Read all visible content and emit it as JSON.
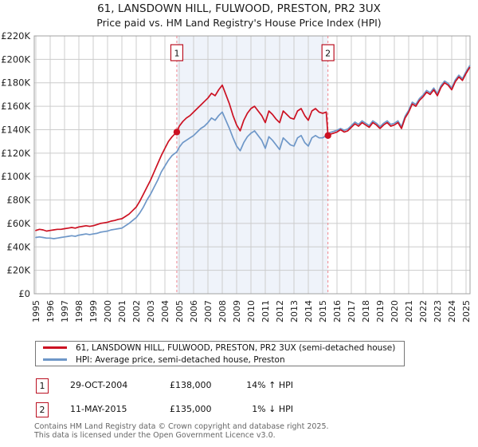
{
  "title": {
    "line1": "61, LANSDOWN HILL, FULWOOD, PRESTON, PR2 3UX",
    "line2": "Price paid vs. HM Land Registry's House Price Index (HPI)"
  },
  "colors": {
    "price_paid": "#cc1122",
    "hpi": "#6e97c8",
    "marker_dashed": "#f0858d",
    "marker_box_border": "#bb1122",
    "shaded_region": "#eff3fa",
    "grid": "#cccccc",
    "frame": "#a0a0a0",
    "axis_text": "#222222"
  },
  "legend": {
    "items": [
      {
        "id": "price_paid",
        "label": "61, LANSDOWN HILL, FULWOOD, PRESTON, PR2 3UX (semi-detached house)",
        "color": "#cc1122"
      },
      {
        "id": "hpi",
        "label": "HPI: Average price, semi-detached house, Preston",
        "color": "#6e97c8"
      }
    ]
  },
  "transactions": {
    "rows": [
      {
        "num": "1",
        "date": "29-OCT-2004",
        "price": "£138,000",
        "vs_hpi": "14% ↑ HPI"
      },
      {
        "num": "2",
        "date": "11-MAY-2015",
        "price": "£135,000",
        "vs_hpi": "1% ↓ HPI"
      }
    ]
  },
  "footer": {
    "line1": "Contains HM Land Registry data © Crown copyright and database right 2025.",
    "line2": "This data is licensed under the Open Government Licence v3.0."
  },
  "chart_data": {
    "type": "line",
    "title": "61, LANSDOWN HILL, FULWOOD, PRESTON, PR2 3UX — Price paid vs. HPI",
    "xlabel": "",
    "ylabel": "",
    "x_range": [
      1995,
      2025.4
    ],
    "y_range_thousands_gbp": [
      0,
      220
    ],
    "grid": true,
    "legend_position": "below",
    "y_ticks": [
      {
        "value": 0,
        "label": "£0"
      },
      {
        "value": 20,
        "label": "£20K"
      },
      {
        "value": 40,
        "label": "£40K"
      },
      {
        "value": 60,
        "label": "£60K"
      },
      {
        "value": 80,
        "label": "£80K"
      },
      {
        "value": 100,
        "label": "£100K"
      },
      {
        "value": 120,
        "label": "£120K"
      },
      {
        "value": 140,
        "label": "£140K"
      },
      {
        "value": 160,
        "label": "£160K"
      },
      {
        "value": 180,
        "label": "£180K"
      },
      {
        "value": 200,
        "label": "£200K"
      },
      {
        "value": 220,
        "label": "£220K"
      }
    ],
    "x_ticks": [
      1995,
      1996,
      1997,
      1998,
      1999,
      2000,
      2001,
      2002,
      2003,
      2004,
      2005,
      2006,
      2007,
      2008,
      2009,
      2010,
      2011,
      2012,
      2013,
      2014,
      2015,
      2016,
      2017,
      2018,
      2019,
      2020,
      2021,
      2022,
      2023,
      2024,
      2025
    ],
    "shaded_region": {
      "from": 2004.83,
      "to": 2015.37
    },
    "markers": [
      {
        "label": "1",
        "year": 2004.83,
        "value": 138
      },
      {
        "label": "2",
        "year": 2015.37,
        "value": 135
      }
    ],
    "series": [
      {
        "id": "price_paid",
        "name": "61, LANSDOWN HILL, FULWOOD, PRESTON, PR2 3UX (semi-detached house)",
        "color": "#cc1122",
        "points": [
          [
            1995.0,
            54
          ],
          [
            1995.25,
            55
          ],
          [
            1995.5,
            54.5
          ],
          [
            1995.75,
            53.5
          ],
          [
            1996.0,
            54
          ],
          [
            1996.25,
            54.5
          ],
          [
            1996.5,
            55
          ],
          [
            1996.75,
            55
          ],
          [
            1997.0,
            55.5
          ],
          [
            1997.25,
            56
          ],
          [
            1997.5,
            56.5
          ],
          [
            1997.75,
            56
          ],
          [
            1998.0,
            57
          ],
          [
            1998.25,
            57.5
          ],
          [
            1998.5,
            58
          ],
          [
            1998.75,
            57.5
          ],
          [
            1999.0,
            58
          ],
          [
            1999.25,
            59
          ],
          [
            1999.5,
            60
          ],
          [
            1999.75,
            60.5
          ],
          [
            2000.0,
            61
          ],
          [
            2000.25,
            62
          ],
          [
            2000.5,
            62.5
          ],
          [
            2000.75,
            63.5
          ],
          [
            2001.0,
            64
          ],
          [
            2001.25,
            66
          ],
          [
            2001.5,
            68
          ],
          [
            2001.75,
            71
          ],
          [
            2002.0,
            74
          ],
          [
            2002.25,
            79
          ],
          [
            2002.5,
            85
          ],
          [
            2002.75,
            91
          ],
          [
            2003.0,
            97
          ],
          [
            2003.25,
            104
          ],
          [
            2003.5,
            111
          ],
          [
            2003.75,
            118
          ],
          [
            2004.0,
            124
          ],
          [
            2004.25,
            130
          ],
          [
            2004.5,
            134
          ],
          [
            2004.83,
            138
          ],
          [
            2005.0,
            143
          ],
          [
            2005.25,
            147
          ],
          [
            2005.5,
            150
          ],
          [
            2005.75,
            152
          ],
          [
            2006.0,
            155
          ],
          [
            2006.25,
            158
          ],
          [
            2006.5,
            161
          ],
          [
            2006.75,
            164
          ],
          [
            2007.0,
            167
          ],
          [
            2007.25,
            171
          ],
          [
            2007.5,
            169
          ],
          [
            2007.75,
            174
          ],
          [
            2008.0,
            178
          ],
          [
            2008.25,
            170
          ],
          [
            2008.5,
            162
          ],
          [
            2008.75,
            152
          ],
          [
            2009.0,
            144
          ],
          [
            2009.25,
            139
          ],
          [
            2009.5,
            148
          ],
          [
            2009.75,
            154
          ],
          [
            2010.0,
            158
          ],
          [
            2010.25,
            160
          ],
          [
            2010.5,
            156
          ],
          [
            2010.75,
            152
          ],
          [
            2011.0,
            146
          ],
          [
            2011.25,
            156
          ],
          [
            2011.5,
            153
          ],
          [
            2011.75,
            149
          ],
          [
            2012.0,
            146
          ],
          [
            2012.25,
            156
          ],
          [
            2012.5,
            153
          ],
          [
            2012.75,
            150
          ],
          [
            2013.0,
            149
          ],
          [
            2013.25,
            156
          ],
          [
            2013.5,
            158
          ],
          [
            2013.75,
            152
          ],
          [
            2014.0,
            148
          ],
          [
            2014.25,
            156
          ],
          [
            2014.5,
            158
          ],
          [
            2014.75,
            155
          ],
          [
            2015.0,
            154
          ],
          [
            2015.25,
            155
          ],
          [
            2015.37,
            135
          ],
          [
            2015.5,
            136
          ],
          [
            2015.75,
            137
          ],
          [
            2016.0,
            138
          ],
          [
            2016.25,
            140
          ],
          [
            2016.5,
            138
          ],
          [
            2016.75,
            139
          ],
          [
            2017.0,
            142
          ],
          [
            2017.25,
            145
          ],
          [
            2017.5,
            143
          ],
          [
            2017.75,
            146
          ],
          [
            2018.0,
            144
          ],
          [
            2018.25,
            142
          ],
          [
            2018.5,
            146
          ],
          [
            2018.75,
            144
          ],
          [
            2019.0,
            141
          ],
          [
            2019.25,
            144
          ],
          [
            2019.5,
            146
          ],
          [
            2019.75,
            143
          ],
          [
            2020.0,
            144
          ],
          [
            2020.25,
            146
          ],
          [
            2020.5,
            141
          ],
          [
            2020.75,
            150
          ],
          [
            2021.0,
            155
          ],
          [
            2021.25,
            162
          ],
          [
            2021.5,
            160
          ],
          [
            2021.75,
            165
          ],
          [
            2022.0,
            168
          ],
          [
            2022.25,
            172
          ],
          [
            2022.5,
            170
          ],
          [
            2022.75,
            174
          ],
          [
            2023.0,
            169
          ],
          [
            2023.25,
            176
          ],
          [
            2023.5,
            180
          ],
          [
            2023.75,
            178
          ],
          [
            2024.0,
            174
          ],
          [
            2024.25,
            181
          ],
          [
            2024.5,
            185
          ],
          [
            2024.75,
            182
          ],
          [
            2025.0,
            188
          ],
          [
            2025.25,
            193
          ]
        ]
      },
      {
        "id": "hpi",
        "name": "HPI: Average price, semi-detached house, Preston",
        "color": "#6e97c8",
        "points": [
          [
            1995.0,
            48
          ],
          [
            1995.25,
            48.5
          ],
          [
            1995.5,
            48
          ],
          [
            1995.75,
            47.5
          ],
          [
            1996.0,
            47.5
          ],
          [
            1996.25,
            47
          ],
          [
            1996.5,
            47.5
          ],
          [
            1996.75,
            48
          ],
          [
            1997.0,
            48.5
          ],
          [
            1997.25,
            49
          ],
          [
            1997.5,
            49.5
          ],
          [
            1997.75,
            49
          ],
          [
            1998.0,
            50
          ],
          [
            1998.25,
            50.5
          ],
          [
            1998.5,
            51
          ],
          [
            1998.75,
            50.5
          ],
          [
            1999.0,
            51
          ],
          [
            1999.25,
            51.5
          ],
          [
            1999.5,
            52.5
          ],
          [
            1999.75,
            53
          ],
          [
            2000.0,
            53.5
          ],
          [
            2000.25,
            54.5
          ],
          [
            2000.5,
            55
          ],
          [
            2000.75,
            55.5
          ],
          [
            2001.0,
            56
          ],
          [
            2001.25,
            58
          ],
          [
            2001.5,
            60
          ],
          [
            2001.75,
            62.5
          ],
          [
            2002.0,
            65
          ],
          [
            2002.25,
            69
          ],
          [
            2002.5,
            74
          ],
          [
            2002.75,
            80
          ],
          [
            2003.0,
            85
          ],
          [
            2003.25,
            91
          ],
          [
            2003.5,
            97
          ],
          [
            2003.75,
            104
          ],
          [
            2004.0,
            109
          ],
          [
            2004.25,
            114
          ],
          [
            2004.5,
            118
          ],
          [
            2004.83,
            121
          ],
          [
            2005.0,
            125
          ],
          [
            2005.25,
            129
          ],
          [
            2005.5,
            131
          ],
          [
            2005.75,
            133
          ],
          [
            2006.0,
            135
          ],
          [
            2006.25,
            138
          ],
          [
            2006.5,
            141
          ],
          [
            2006.75,
            143
          ],
          [
            2007.0,
            146
          ],
          [
            2007.25,
            150
          ],
          [
            2007.5,
            148
          ],
          [
            2007.75,
            152
          ],
          [
            2008.0,
            155
          ],
          [
            2008.25,
            148
          ],
          [
            2008.5,
            141
          ],
          [
            2008.75,
            133
          ],
          [
            2009.0,
            126
          ],
          [
            2009.25,
            122
          ],
          [
            2009.5,
            129
          ],
          [
            2009.75,
            134
          ],
          [
            2010.0,
            137
          ],
          [
            2010.25,
            139
          ],
          [
            2010.5,
            135
          ],
          [
            2010.75,
            131
          ],
          [
            2011.0,
            124
          ],
          [
            2011.25,
            134
          ],
          [
            2011.5,
            131
          ],
          [
            2011.75,
            127
          ],
          [
            2012.0,
            123
          ],
          [
            2012.25,
            133
          ],
          [
            2012.5,
            130
          ],
          [
            2012.75,
            127
          ],
          [
            2013.0,
            126
          ],
          [
            2013.25,
            133
          ],
          [
            2013.5,
            135
          ],
          [
            2013.75,
            129
          ],
          [
            2014.0,
            126
          ],
          [
            2014.25,
            133
          ],
          [
            2014.5,
            135
          ],
          [
            2014.75,
            133
          ],
          [
            2015.0,
            133
          ],
          [
            2015.25,
            135
          ],
          [
            2015.37,
            136
          ],
          [
            2015.5,
            137.5
          ],
          [
            2015.75,
            138.5
          ],
          [
            2016.0,
            139.5
          ],
          [
            2016.25,
            141
          ],
          [
            2016.5,
            139.5
          ],
          [
            2016.75,
            140.5
          ],
          [
            2017.0,
            143.5
          ],
          [
            2017.25,
            146.5
          ],
          [
            2017.5,
            144.5
          ],
          [
            2017.75,
            147.5
          ],
          [
            2018.0,
            145.5
          ],
          [
            2018.25,
            143.5
          ],
          [
            2018.5,
            147.5
          ],
          [
            2018.75,
            145.5
          ],
          [
            2019.0,
            142.5
          ],
          [
            2019.25,
            145.5
          ],
          [
            2019.5,
            147.5
          ],
          [
            2019.75,
            144.5
          ],
          [
            2020.0,
            145.5
          ],
          [
            2020.25,
            147.5
          ],
          [
            2020.5,
            142.5
          ],
          [
            2020.75,
            151.5
          ],
          [
            2021.0,
            156.5
          ],
          [
            2021.25,
            163.5
          ],
          [
            2021.5,
            161.5
          ],
          [
            2021.75,
            166.5
          ],
          [
            2022.0,
            169.5
          ],
          [
            2022.25,
            173.5
          ],
          [
            2022.5,
            171.5
          ],
          [
            2022.75,
            175.5
          ],
          [
            2023.0,
            170.5
          ],
          [
            2023.25,
            177.5
          ],
          [
            2023.5,
            181.5
          ],
          [
            2023.75,
            179.5
          ],
          [
            2024.0,
            175.5
          ],
          [
            2024.25,
            182.5
          ],
          [
            2024.5,
            186.5
          ],
          [
            2024.75,
            183.5
          ],
          [
            2025.0,
            189.5
          ],
          [
            2025.25,
            194.5
          ]
        ]
      }
    ]
  }
}
